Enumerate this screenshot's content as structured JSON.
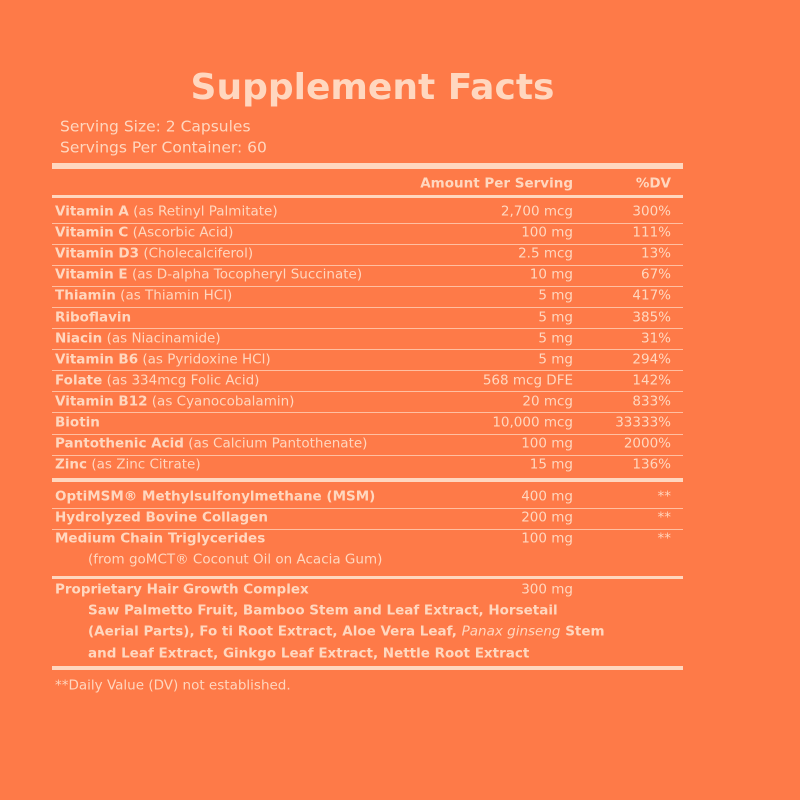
{
  "title": "Supplement Facts",
  "serving_size": "Serving Size: 2 Capsules",
  "servings_per_container": "Servings Per Container: 60",
  "header": {
    "amount": "Amount Per Serving",
    "dv": "%DV"
  },
  "vitamins": [
    {
      "name": "Vitamin A",
      "detail": "(as Retinyl Palmitate)",
      "amount": "2,700 mcg",
      "dv": "300%"
    },
    {
      "name": "Vitamin C",
      "detail": "(Ascorbic Acid)",
      "amount": "100 mg",
      "dv": "111%"
    },
    {
      "name": "Vitamin D3",
      "detail": "(Cholecalciferol)",
      "amount": "2.5 mcg",
      "dv": "13%"
    },
    {
      "name": "Vitamin E",
      "detail": "(as D-alpha Tocopheryl Succinate)",
      "amount": "10 mg",
      "dv": "67%"
    },
    {
      "name": "Thiamin",
      "detail": "(as Thiamin HCl)",
      "amount": "5 mg",
      "dv": "417%"
    },
    {
      "name": "Riboflavin",
      "amount": "5 mg",
      "dv": "385%"
    },
    {
      "name": "Niacin",
      "detail": "(as Niacinamide)",
      "amount": "5 mg",
      "dv": "31%"
    },
    {
      "name": "Vitamin B6",
      "detail": "(as Pyridoxine HCl)",
      "amount": "5 mg",
      "dv": "294%"
    },
    {
      "name": "Folate",
      "detail": "(as 334mcg Folic Acid)",
      "amount": "568 mcg DFE",
      "dv": "142%"
    },
    {
      "name": "Vitamin B12",
      "detail": "(as Cyanocobalamin)",
      "amount": "20 mcg",
      "dv": "833%"
    },
    {
      "name": "Biotin",
      "amount": "10,000 mcg",
      "dv": "33333%"
    },
    {
      "name": "Pantothenic Acid",
      "detail": "(as Calcium Pantothenate)",
      "amount": "100 mg",
      "dv": "2000%"
    },
    {
      "name": "Zinc",
      "detail": "(as Zinc Citrate)",
      "amount": "15 mg",
      "dv": "136%"
    }
  ],
  "other": [
    {
      "name": "OptiMSM® Methylsulfonylmethane (MSM)",
      "amount": "400 mg",
      "dv": "**"
    },
    {
      "name": "Hydrolyzed Bovine Collagen",
      "amount": "200 mg",
      "dv": "**"
    },
    {
      "name": "Medium Chain Triglycerides",
      "amount": "100 mg",
      "dv": "**",
      "sub": "(from goMCT® Coconut Oil on Acacia Gum)"
    }
  ],
  "blend": {
    "name": "Proprietary Hair Growth Complex",
    "amount": "300 mg",
    "lines": [
      "Saw Palmetto Fruit, Bamboo Stem and Leaf Extract, Horsetail",
      [
        "(Aerial Parts), Fo ti Root Extract, Aloe Vera Leaf, ",
        "Panax ginseng",
        " Stem"
      ],
      "and Leaf Extract, Ginkgo Leaf Extract, Nettle Root Extract"
    ]
  },
  "footnote": "**Daily Value (DV) not established."
}
